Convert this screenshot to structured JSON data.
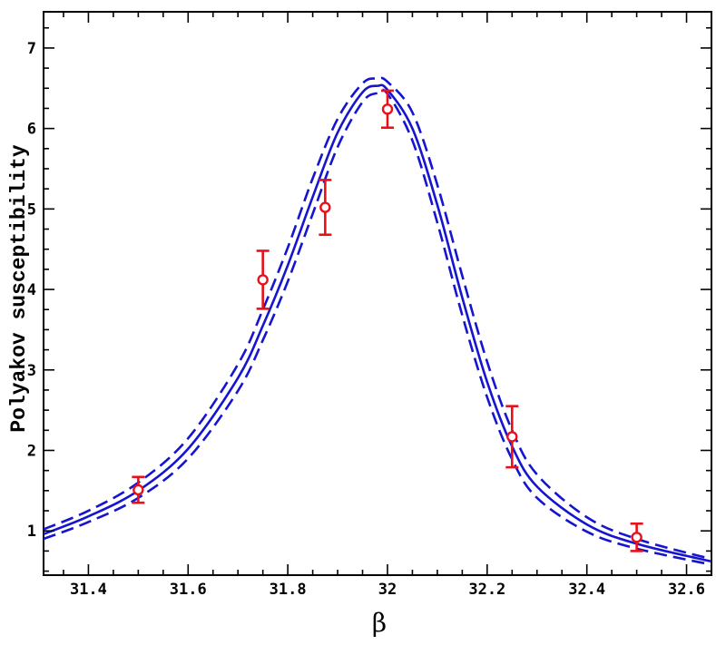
{
  "chart_data": {
    "type": "line",
    "title": "",
    "xlabel": "β",
    "ylabel": "Polyakov susceptibility",
    "xlim": [
      31.31,
      32.65
    ],
    "ylim": [
      0.45,
      7.45
    ],
    "xticks": [
      31.4,
      31.6,
      31.8,
      32,
      32.2,
      32.4,
      32.6
    ],
    "xtick_labels": [
      "31.4",
      "31.6",
      "31.8",
      "32",
      "32.2",
      "32.4",
      "32.6"
    ],
    "yticks": [
      1,
      2,
      3,
      4,
      5,
      6,
      7
    ],
    "ytick_labels": [
      "1",
      "2",
      "3",
      "4",
      "5",
      "6",
      "7"
    ],
    "grid": false,
    "colors": {
      "fit": "#1515d0",
      "data": "#e8101a",
      "axes": "#000000"
    },
    "series": [
      {
        "style": "solid",
        "x": [
          31.31,
          31.4,
          31.5,
          31.6,
          31.7,
          31.75,
          31.8,
          31.85,
          31.9,
          31.95,
          31.98,
          32.0,
          32.05,
          32.1,
          32.15,
          32.2,
          32.25,
          32.3,
          32.4,
          32.5,
          32.65
        ],
        "y": [
          0.96,
          1.18,
          1.5,
          2.02,
          2.9,
          3.55,
          4.3,
          5.15,
          5.95,
          6.45,
          6.53,
          6.48,
          6.0,
          5.05,
          3.9,
          2.85,
          2.05,
          1.55,
          1.08,
          0.84,
          0.62
        ]
      },
      {
        "style": "dashed",
        "x": [
          31.31,
          31.4,
          31.5,
          31.6,
          31.7,
          31.75,
          31.8,
          31.85,
          31.9,
          31.95,
          31.98,
          32.0,
          32.05,
          32.1,
          32.15,
          32.2,
          32.25,
          32.3,
          32.4,
          32.5,
          32.65
        ],
        "y": [
          1.02,
          1.25,
          1.6,
          2.15,
          3.07,
          3.75,
          4.52,
          5.38,
          6.12,
          6.56,
          6.62,
          6.58,
          6.2,
          5.3,
          4.17,
          3.1,
          2.25,
          1.7,
          1.17,
          0.9,
          0.65
        ]
      },
      {
        "style": "dashed",
        "x": [
          31.31,
          31.4,
          31.5,
          31.6,
          31.7,
          31.75,
          31.8,
          31.85,
          31.9,
          31.95,
          31.98,
          32.0,
          32.05,
          32.1,
          32.15,
          32.2,
          32.25,
          32.3,
          32.4,
          32.5,
          32.65
        ],
        "y": [
          0.9,
          1.11,
          1.41,
          1.9,
          2.74,
          3.37,
          4.1,
          4.94,
          5.77,
          6.33,
          6.44,
          6.43,
          5.85,
          4.83,
          3.68,
          2.66,
          1.89,
          1.41,
          0.99,
          0.78,
          0.58
        ]
      }
    ],
    "points": [
      {
        "x": 31.5,
        "y": 1.51,
        "yerr_low": 0.16,
        "yerr_high": 0.16
      },
      {
        "x": 31.75,
        "y": 4.12,
        "yerr_low": 0.36,
        "yerr_high": 0.36
      },
      {
        "x": 31.875,
        "y": 5.02,
        "yerr_low": 0.34,
        "yerr_high": 0.34
      },
      {
        "x": 32.0,
        "y": 6.24,
        "yerr_low": 0.23,
        "yerr_high": 0.23
      },
      {
        "x": 32.25,
        "y": 2.17,
        "yerr_low": 0.38,
        "yerr_high": 0.38
      },
      {
        "x": 32.5,
        "y": 0.92,
        "yerr_low": 0.17,
        "yerr_high": 0.17
      }
    ]
  }
}
